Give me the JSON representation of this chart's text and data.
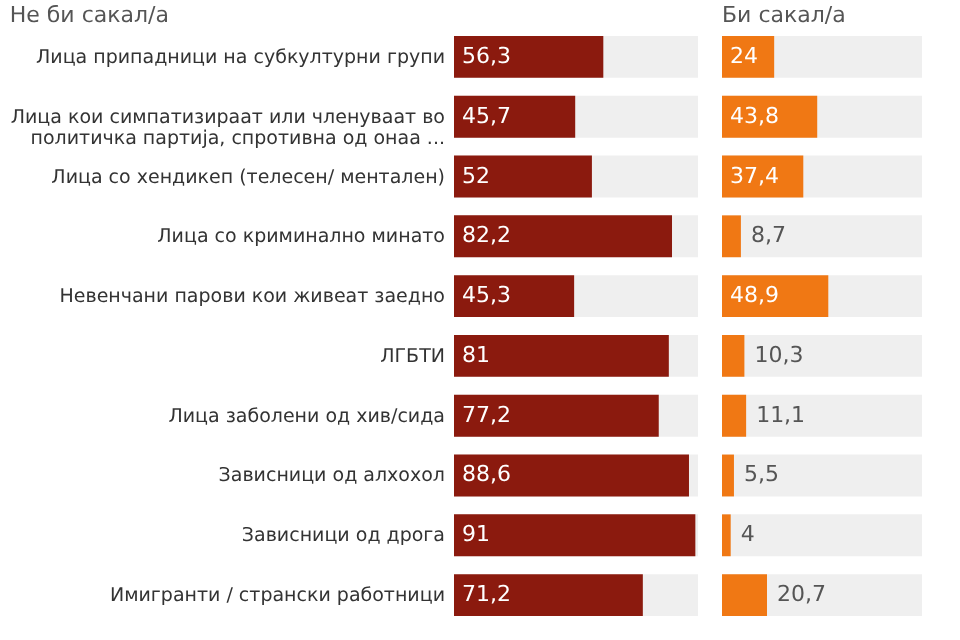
{
  "chart_data": [
    {
      "type": "bar",
      "orientation": "horizontal",
      "title": "Не би сакал/а",
      "categories": [
        "Лица припадници на субкултурни групи",
        "Лица кои симпатизираат или членуваат во политичка партија, спротивна од онаа ...",
        "Лица со хендикеп (телесен/ ментален)",
        "Лица со криминално минато",
        "Невенчани парови кои живеат заедно",
        "ЛГБТИ",
        "Лица заболени од хив/сида",
        "Зависници од алхохол",
        "Зависници од дрога",
        "Имигранти / странски работници"
      ],
      "values": [
        56.3,
        45.7,
        52,
        82.2,
        45.3,
        81,
        77.2,
        88.6,
        91,
        71.2
      ],
      "value_labels": [
        "56,3",
        "45,7",
        "52",
        "82,2",
        "45,3",
        "81",
        "77,2",
        "88,6",
        "91",
        "71,2"
      ],
      "color": "#8b1a0e",
      "xlim": [
        0,
        92
      ],
      "bands": [
        {
          "axis": "x",
          "from": 0,
          "to": 92,
          "color": "#efefef"
        }
      ]
    },
    {
      "type": "bar",
      "orientation": "horizontal",
      "title": "Би сакал/а",
      "tick_labels": false,
      "categories": [
        null,
        null,
        null,
        null,
        null,
        null,
        null,
        null,
        null,
        null
      ],
      "values": [
        24,
        43.8,
        37.4,
        8.7,
        48.9,
        10.3,
        11.1,
        5.5,
        4,
        20.7
      ],
      "value_labels": [
        "24",
        "43,8",
        "37,4",
        "8,7",
        "48,9",
        "10,3",
        "11,1",
        "5,5",
        "4",
        "20,7"
      ],
      "color": "#f07814",
      "xlim": [
        0,
        92
      ],
      "bands": [
        {
          "axis": "x",
          "from": 0,
          "to": 92,
          "color": "#efefef"
        }
      ]
    }
  ]
}
